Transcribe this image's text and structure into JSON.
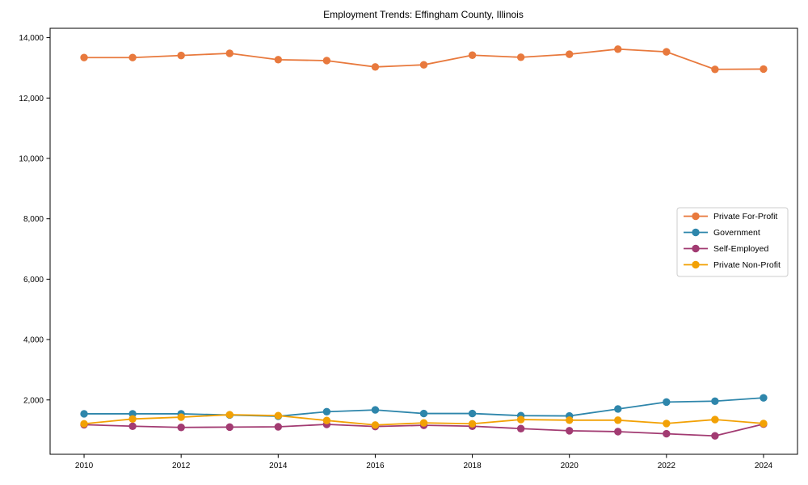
{
  "page": {
    "background_color": "#ffffff",
    "axis_color": "#000000"
  },
  "chart_data": {
    "type": "line",
    "title": "Employment Trends: Effingham County, Illinois",
    "xlabel": "",
    "ylabel": "",
    "grid": "off",
    "legend_position": "right-middle",
    "legend_border_color": "#cccccc",
    "legend_background": "#ffffff",
    "x": [
      2010,
      2011,
      2012,
      2013,
      2014,
      2015,
      2016,
      2017,
      2018,
      2019,
      2020,
      2021,
      2022,
      2023,
      2024
    ],
    "series": [
      {
        "name": "Private For-Profit",
        "color": "#E8793D",
        "values": [
          13340,
          13340,
          13410,
          13480,
          13270,
          13240,
          13030,
          13100,
          13420,
          13350,
          13450,
          13620,
          13530,
          12950,
          12960
        ]
      },
      {
        "name": "Government",
        "color": "#2E86AB",
        "values": [
          1540,
          1540,
          1540,
          1500,
          1460,
          1610,
          1670,
          1550,
          1550,
          1480,
          1470,
          1700,
          1930,
          1960,
          2070
        ]
      },
      {
        "name": "Self-Employed",
        "color": "#A23B72",
        "values": [
          1180,
          1130,
          1090,
          1100,
          1110,
          1190,
          1120,
          1160,
          1130,
          1050,
          980,
          950,
          880,
          810,
          1200
        ]
      },
      {
        "name": "Private Non-Profit",
        "color": "#F2A105",
        "values": [
          1210,
          1370,
          1430,
          1510,
          1480,
          1320,
          1170,
          1240,
          1210,
          1350,
          1330,
          1330,
          1220,
          1350,
          1220
        ]
      }
    ],
    "xticks": {
      "values": [
        2010,
        2012,
        2014,
        2016,
        2018,
        2020,
        2022,
        2024
      ],
      "labels": [
        "2010",
        "2012",
        "2014",
        "2016",
        "2018",
        "2020",
        "2022",
        "2024"
      ]
    },
    "yticks": {
      "values": [
        2000,
        4000,
        6000,
        8000,
        10000,
        12000,
        14000
      ],
      "labels": [
        "2,000",
        "4,000",
        "6,000",
        "8,000",
        "10,000",
        "12,000",
        "14,000"
      ]
    },
    "xlim": [
      2009.3,
      2024.7
    ],
    "ylim": [
      200,
      14310
    ]
  }
}
